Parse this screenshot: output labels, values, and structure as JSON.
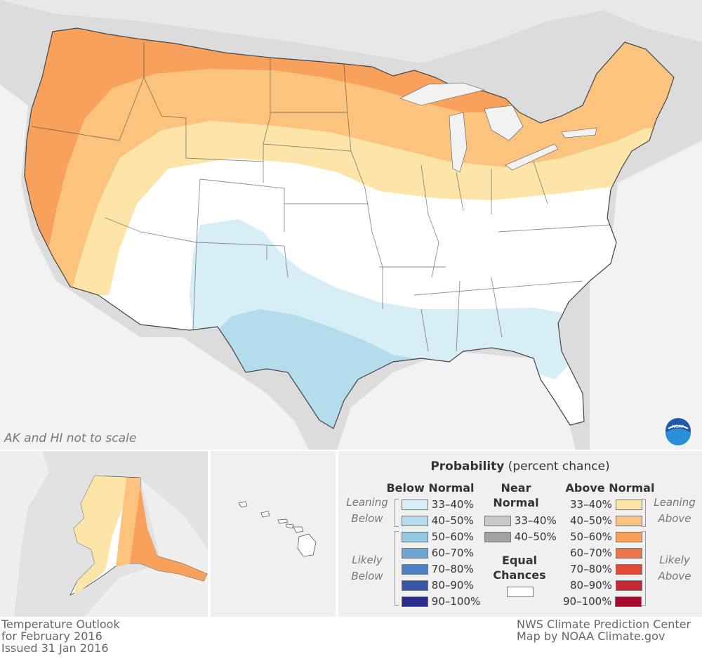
{
  "map": {
    "note": "AK and HI not to scale",
    "logo_label": "NOAA"
  },
  "legend": {
    "title": "Probability",
    "title_suffix": "(percent chance)",
    "below": {
      "heading": "Below Normal",
      "leaning_label": "Leaning Below",
      "likely_label": "Likely Below",
      "items": [
        {
          "label": "33–40%",
          "color": "#d8eef6"
        },
        {
          "label": "40–50%",
          "color": "#b5dcec"
        },
        {
          "label": "50–60%",
          "color": "#93c6df"
        },
        {
          "label": "60–70%",
          "color": "#6ea6d3"
        },
        {
          "label": "70–80%",
          "color": "#4d80c2"
        },
        {
          "label": "80–90%",
          "color": "#3656a8"
        },
        {
          "label": "90–100%",
          "color": "#2a2b8b"
        }
      ]
    },
    "near": {
      "heading": "Near Normal",
      "items": [
        {
          "label": "33–40%",
          "color": "#c8c8c8"
        },
        {
          "label": "40–50%",
          "color": "#a2a2a2"
        }
      ]
    },
    "equal": {
      "heading": "Equal Chances",
      "color": "#ffffff"
    },
    "above": {
      "heading": "Above Normal",
      "leaning_label": "Leaning Above",
      "likely_label": "Likely Above",
      "items": [
        {
          "label": "33–40%",
          "color": "#fde5a9"
        },
        {
          "label": "40–50%",
          "color": "#fbc37e"
        },
        {
          "label": "50–60%",
          "color": "#f7a15c"
        },
        {
          "label": "60–70%",
          "color": "#ef7446"
        },
        {
          "label": "70–80%",
          "color": "#e04a37"
        },
        {
          "label": "80–90%",
          "color": "#c72831"
        },
        {
          "label": "90–100%",
          "color": "#a80a2d"
        }
      ]
    }
  },
  "footer": {
    "left": [
      "Temperature Outlook",
      "for February 2016",
      "Issued 31 Jan 2016"
    ],
    "right": [
      "NWS Climate Prediction Center",
      "Map by NOAA Climate.gov"
    ]
  }
}
